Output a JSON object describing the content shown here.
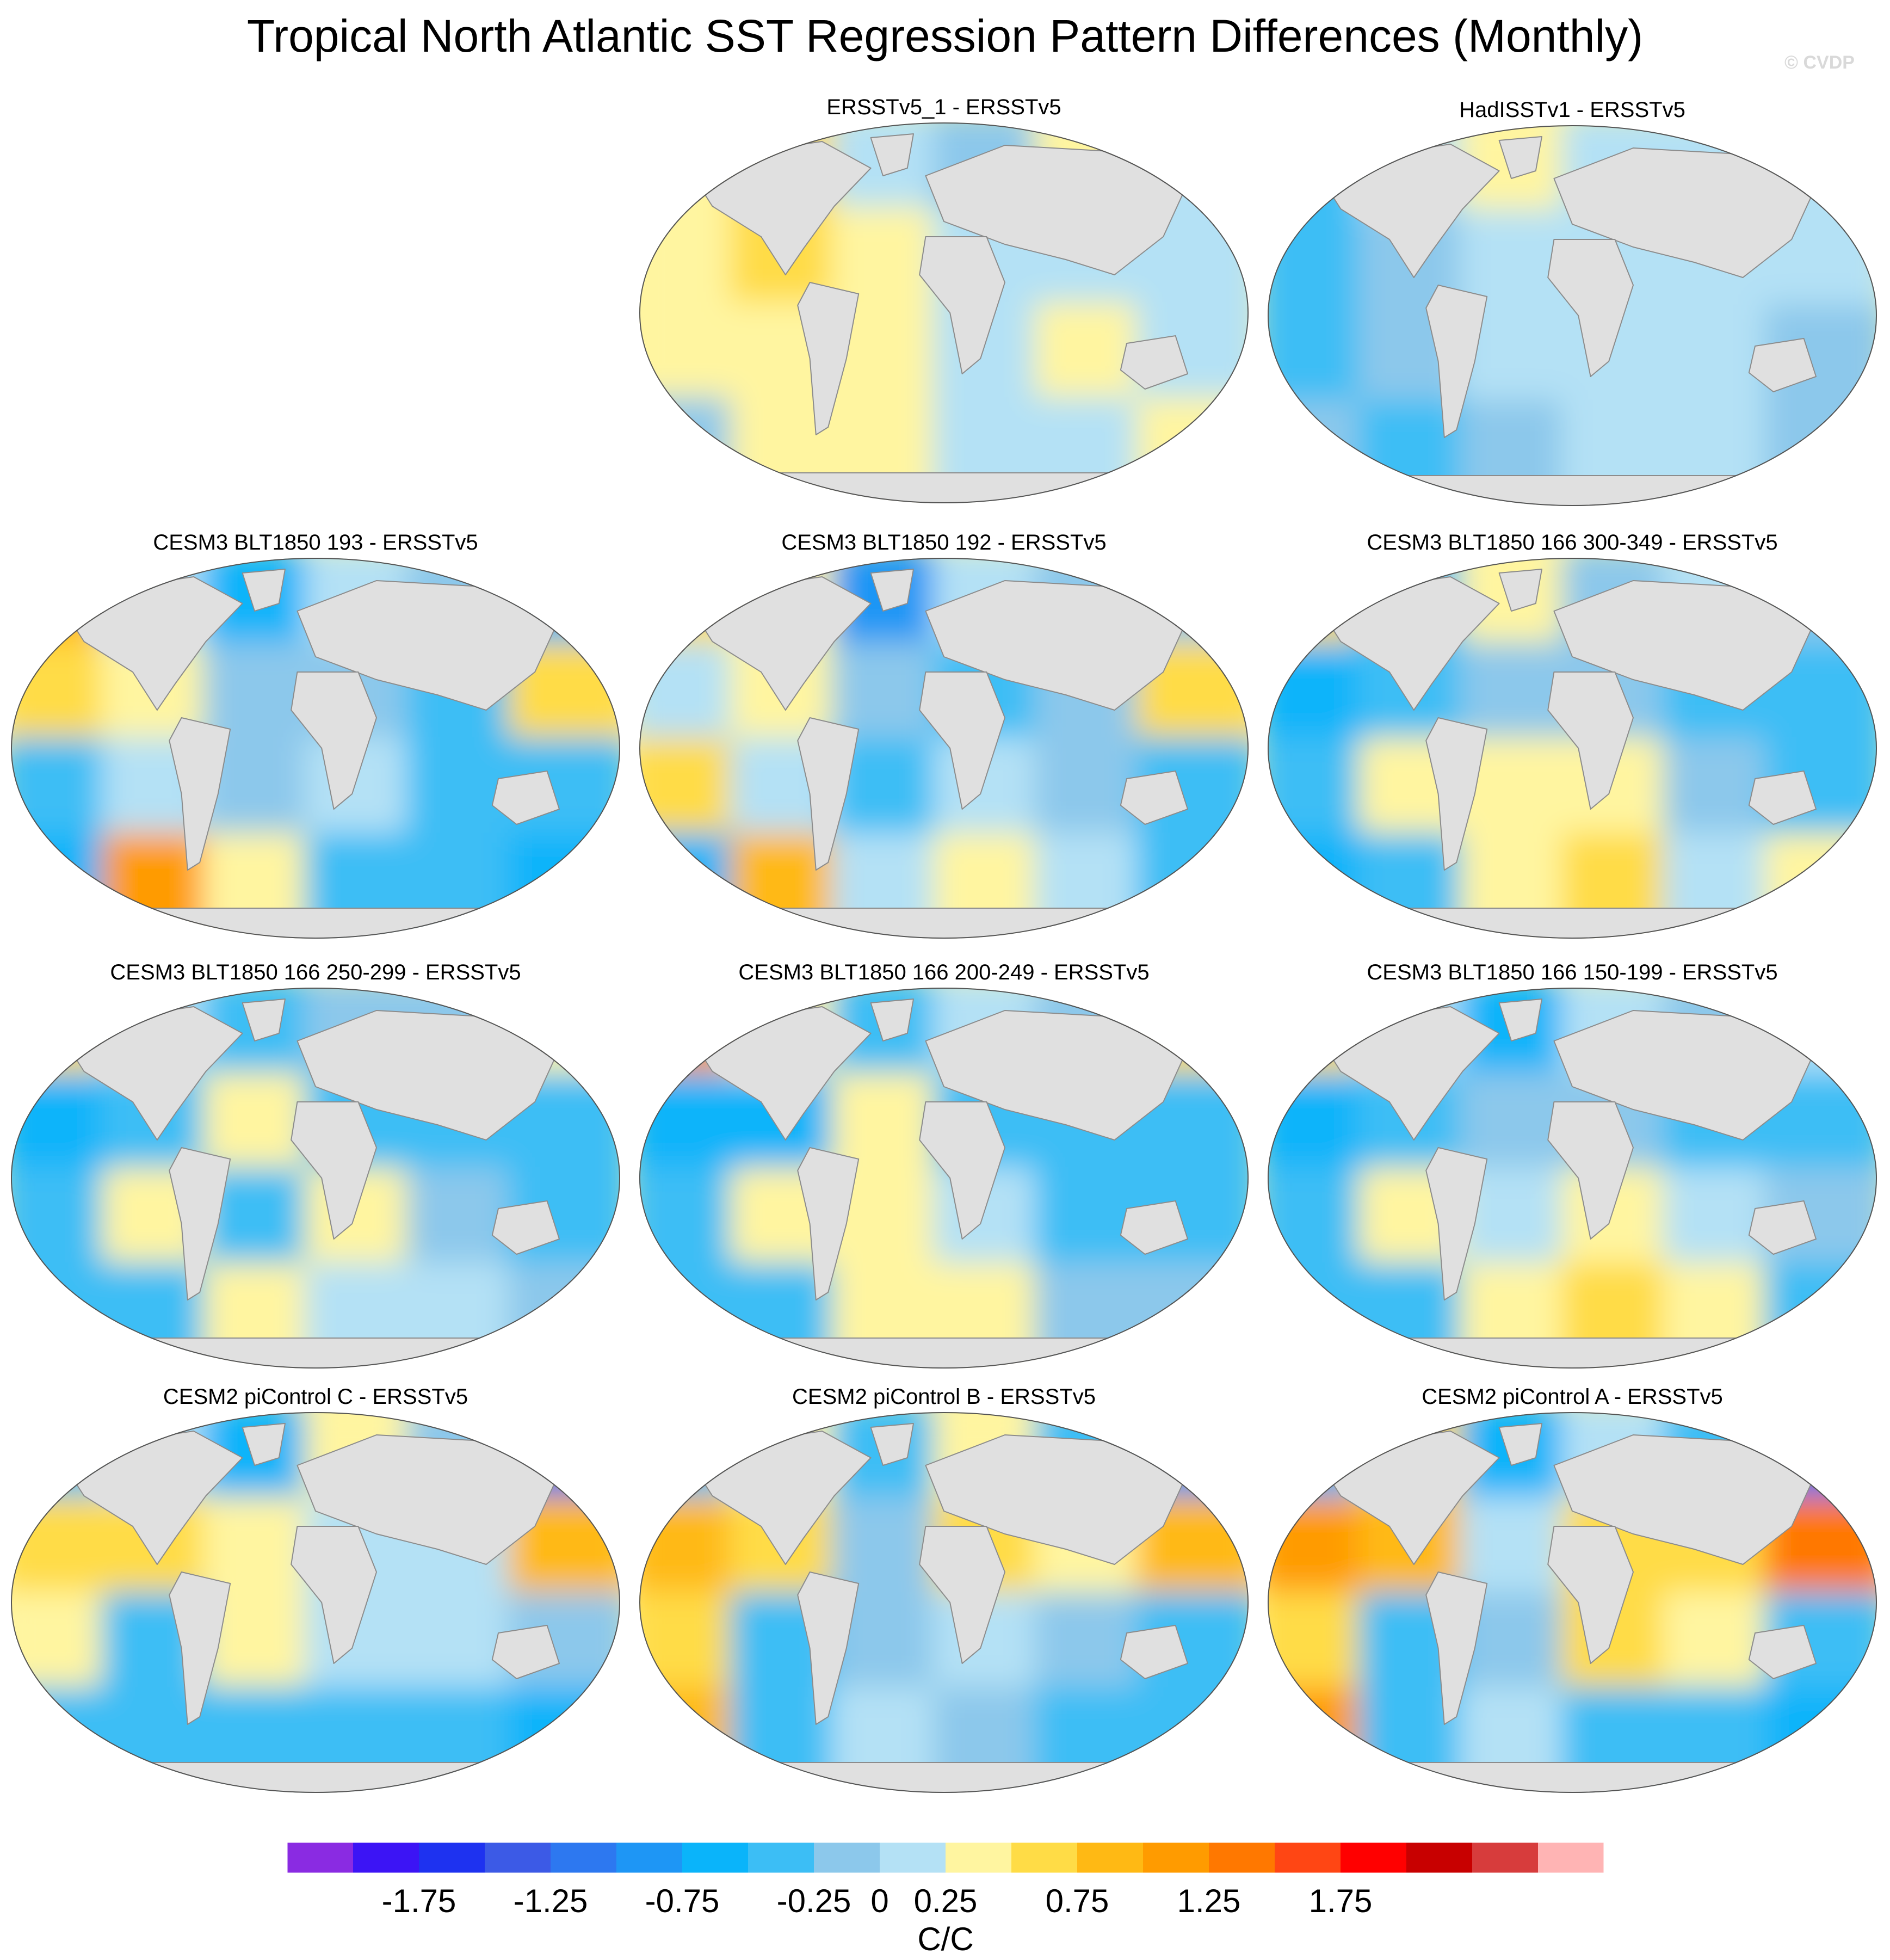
{
  "page": {
    "title": "Tropical North Atlantic SST Regression Pattern Differences (Monthly)",
    "watermark": "© CVDP"
  },
  "chart_data": {
    "type": "heatmap",
    "projection": "Robinson (global)",
    "panels": [
      {
        "label": "ERSSTv5_1 - ERSSTv5",
        "pattern": [
          [
            0.3,
            0.5,
            0.2,
            -0.1,
            0.4,
            0.1
          ],
          [
            0.4,
            0.5,
            0.4,
            0.1,
            0.2,
            0.2
          ],
          [
            0.3,
            0.3,
            0.3,
            0.2,
            0.3,
            0.2
          ],
          [
            -0.1,
            0.4,
            0.3,
            0.2,
            0.1,
            0.3
          ]
        ]
      },
      {
        "label": "HadISSTv1 - ERSSTv5",
        "pattern": [
          [
            -0.3,
            0.1,
            0.3,
            0.1,
            0.1,
            0.0
          ],
          [
            -0.4,
            -0.2,
            0.2,
            0.1,
            0.1,
            0.0
          ],
          [
            -0.3,
            -0.2,
            0.1,
            0.1,
            0.2,
            -0.1
          ],
          [
            -0.2,
            -0.3,
            -0.2,
            0.2,
            0.0,
            -0.1
          ]
        ]
      },
      {
        "label": "CESM3 BLT1850 193 - ERSSTv5",
        "pattern": [
          [
            0.9,
            0.1,
            -0.6,
            0.0,
            -0.2,
            -0.6
          ],
          [
            0.6,
            0.3,
            -0.2,
            -0.2,
            -0.4,
            0.5
          ],
          [
            -0.4,
            0.2,
            -0.1,
            0.2,
            -0.3,
            -0.4
          ],
          [
            -0.6,
            1.2,
            0.3,
            -0.3,
            -0.4,
            -0.6
          ]
        ]
      },
      {
        "label": "CESM3 BLT1850 192 - ERSSTv5",
        "pattern": [
          [
            0.5,
            0.3,
            -0.8,
            0.2,
            -0.2,
            -0.2
          ],
          [
            0.2,
            0.4,
            -0.2,
            -0.3,
            -0.2,
            0.6
          ],
          [
            0.5,
            0.1,
            -0.3,
            0.0,
            -0.2,
            -0.3
          ],
          [
            -0.6,
            0.8,
            0.1,
            0.4,
            0.1,
            -0.3
          ]
        ]
      },
      {
        "label": "CESM3 BLT1850 166 300-349 - ERSSTv5",
        "pattern": [
          [
            0.7,
            -0.3,
            0.4,
            -0.2,
            0.2,
            -0.1
          ],
          [
            -0.6,
            -0.4,
            -0.2,
            -0.2,
            -0.4,
            -0.3
          ],
          [
            -0.3,
            0.3,
            0.3,
            0.4,
            -0.2,
            -0.4
          ],
          [
            -0.7,
            -0.4,
            0.4,
            0.5,
            0.2,
            0.3
          ]
        ]
      },
      {
        "label": "CESM3 BLT1850 166 250-299 - ERSSTv5",
        "pattern": [
          [
            0.7,
            0.2,
            -0.4,
            -0.1,
            -0.2,
            0.3
          ],
          [
            -0.6,
            -0.5,
            0.3,
            -0.3,
            -0.3,
            -0.3
          ],
          [
            -0.5,
            0.4,
            -0.3,
            0.3,
            -0.2,
            -0.4
          ],
          [
            -0.5,
            -0.3,
            0.3,
            0.2,
            0.1,
            -0.2
          ]
        ]
      },
      {
        "label": "CESM3 BLT1850 166 200-249 - ERSSTv5",
        "pattern": [
          [
            1.0,
            0.3,
            -0.5,
            0.1,
            -0.2,
            0.6
          ],
          [
            -0.7,
            -0.6,
            0.3,
            -0.3,
            -0.3,
            -0.4
          ],
          [
            -0.5,
            0.3,
            0.3,
            0.2,
            -0.3,
            -0.3
          ],
          [
            -0.5,
            -0.3,
            0.3,
            0.3,
            -0.2,
            -0.2
          ]
        ]
      },
      {
        "label": "CESM3 BLT1850 166 150-199 - ERSSTv5",
        "pattern": [
          [
            0.7,
            0.0,
            -0.6,
            0.0,
            -0.2,
            0.2
          ],
          [
            -0.6,
            -0.5,
            -0.2,
            -0.2,
            -0.3,
            -0.3
          ],
          [
            -0.4,
            0.3,
            0.2,
            0.4,
            0.2,
            -0.2
          ],
          [
            -0.5,
            -0.3,
            0.4,
            0.7,
            0.3,
            -0.3
          ]
        ]
      },
      {
        "label": "CESM2 piControl C - ERSSTv5",
        "pattern": [
          [
            -0.3,
            0.2,
            -0.6,
            0.3,
            -0.2,
            -1.2
          ],
          [
            0.6,
            0.5,
            0.4,
            0.2,
            0.2,
            0.8
          ],
          [
            0.4,
            -0.3,
            0.4,
            0.1,
            0.2,
            -0.2
          ],
          [
            -0.5,
            -0.3,
            -0.4,
            -0.3,
            -0.5,
            -0.6
          ]
        ]
      },
      {
        "label": "CESM2 piControl B - ERSSTv5",
        "pattern": [
          [
            -0.4,
            0.3,
            -0.5,
            0.3,
            -0.4,
            -0.8
          ],
          [
            0.8,
            0.7,
            -0.2,
            0.5,
            0.3,
            0.8
          ],
          [
            0.6,
            -0.3,
            -0.2,
            0.2,
            -0.2,
            -0.3
          ],
          [
            0.8,
            -0.3,
            0.2,
            -0.2,
            -0.4,
            -0.5
          ]
        ]
      },
      {
        "label": "CESM2 piControl A - ERSSTv5",
        "pattern": [
          [
            -0.6,
            0.5,
            -0.6,
            0.2,
            -0.5,
            -1.1
          ],
          [
            1.0,
            0.8,
            0.1,
            0.7,
            0.6,
            1.3
          ],
          [
            0.5,
            -0.3,
            -0.2,
            0.6,
            0.4,
            -0.4
          ],
          [
            1.0,
            -0.5,
            0.1,
            -0.3,
            -0.5,
            -0.6
          ]
        ]
      }
    ],
    "colorbar": {
      "label": "C/C",
      "levels": [
        -2.0,
        -1.75,
        -1.5,
        -1.25,
        -1.0,
        -0.75,
        -0.5,
        -0.25,
        0,
        0.25,
        0.5,
        0.75,
        1.0,
        1.25,
        1.5,
        1.75,
        2.0
      ],
      "tick_labels": [
        "-1.75",
        "-1.25",
        "-0.75",
        "-0.25",
        "0",
        "0.25",
        "0.75",
        "1.25",
        "1.75"
      ],
      "colors": [
        "#8a2be2",
        "#3c14f5",
        "#1e32f0",
        "#3c5ae6",
        "#2d78f0",
        "#1e96f5",
        "#0ab4fa",
        "#3cbef5",
        "#8cc8eb",
        "#b4e1f5",
        "#fff5a0",
        "#ffdc46",
        "#ffb914",
        "#ff9b00",
        "#ff7800",
        "#ff4614",
        "#ff0000",
        "#c80000",
        "#d73c3c",
        "#ffb4b4"
      ]
    }
  }
}
